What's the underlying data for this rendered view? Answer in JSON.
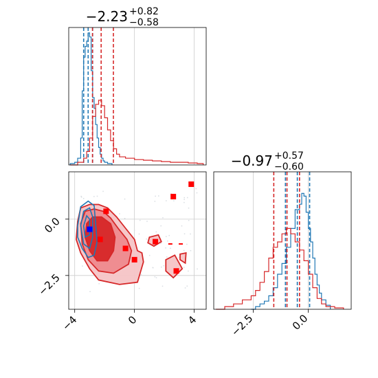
{
  "chart_data": [
    {
      "type": "histogram",
      "panel": "top-left marginal",
      "title": {
        "main": "−2.23",
        "sup": "+0.82",
        "sub": "−0.58"
      },
      "xlim": [
        -4.4,
        4.8
      ],
      "grid": true,
      "x_gridlines": [
        0,
        4
      ],
      "series": [
        {
          "color": "#1f77b4",
          "bins": [
            [
              -4.3,
              0.01
            ],
            [
              -4.0,
              0.02
            ],
            [
              -3.8,
              0.05
            ],
            [
              -3.6,
              0.2
            ],
            [
              -3.5,
              0.55
            ],
            [
              -3.4,
              0.8
            ],
            [
              -3.3,
              0.88
            ],
            [
              -3.2,
              0.92
            ],
            [
              -3.1,
              0.98
            ],
            [
              -3.0,
              0.95
            ],
            [
              -2.9,
              0.7
            ],
            [
              -2.8,
              0.5
            ],
            [
              -2.7,
              0.42
            ],
            [
              -2.6,
              0.3
            ],
            [
              -2.5,
              0.2
            ],
            [
              -2.4,
              0.13
            ],
            [
              -2.3,
              0.08
            ],
            [
              -2.2,
              0.05
            ],
            [
              -2.1,
              0.03
            ],
            [
              -2.0,
              0.02
            ],
            [
              -1.8,
              0.01
            ],
            [
              -1.5,
              0.0
            ]
          ],
          "quantiles": [
            -3.4,
            -3.1,
            -2.8
          ]
        },
        {
          "color": "#d62728",
          "bins": [
            [
              -4.3,
              0.0
            ],
            [
              -3.8,
              0.02
            ],
            [
              -3.4,
              0.05
            ],
            [
              -3.2,
              0.1
            ],
            [
              -3.0,
              0.2
            ],
            [
              -2.8,
              0.36
            ],
            [
              -2.6,
              0.45
            ],
            [
              -2.4,
              0.48
            ],
            [
              -2.2,
              0.44
            ],
            [
              -2.0,
              0.35
            ],
            [
              -1.8,
              0.26
            ],
            [
              -1.6,
              0.18
            ],
            [
              -1.4,
              0.12
            ],
            [
              -1.2,
              0.08
            ],
            [
              -1.0,
              0.06
            ],
            [
              -0.6,
              0.05
            ],
            [
              0.0,
              0.04
            ],
            [
              0.6,
              0.035
            ],
            [
              1.2,
              0.03
            ],
            [
              1.8,
              0.025
            ],
            [
              2.4,
              0.02
            ],
            [
              3.0,
              0.02
            ],
            [
              3.6,
              0.015
            ],
            [
              4.2,
              0.01
            ],
            [
              4.6,
              0.0
            ]
          ],
          "quantiles": [
            -2.81,
            -2.23,
            -1.41
          ]
        }
      ]
    },
    {
      "type": "histogram",
      "panel": "bottom-right marginal",
      "title": {
        "main": "−0.97",
        "sup": "+0.57",
        "sub": "−0.60"
      },
      "xlim": [
        -4.3,
        1.95
      ],
      "x_ticks": [
        {
          "value": -2.5,
          "label": "−2.5"
        },
        {
          "value": 0.0,
          "label": "0.0"
        }
      ],
      "grid": true,
      "series": [
        {
          "color": "#1f77b4",
          "bins": [
            [
              -2.6,
              0.0
            ],
            [
              -2.4,
              0.02
            ],
            [
              -2.2,
              0.04
            ],
            [
              -2.0,
              0.06
            ],
            [
              -1.8,
              0.1
            ],
            [
              -1.6,
              0.16
            ],
            [
              -1.4,
              0.26
            ],
            [
              -1.2,
              0.34
            ],
            [
              -1.0,
              0.46
            ],
            [
              -0.8,
              0.6
            ],
            [
              -0.6,
              0.74
            ],
            [
              -0.4,
              0.78
            ],
            [
              -0.3,
              0.86
            ],
            [
              -0.2,
              0.84
            ],
            [
              -0.1,
              0.72
            ],
            [
              0.0,
              0.6
            ],
            [
              0.1,
              0.5
            ],
            [
              0.2,
              0.38
            ],
            [
              0.3,
              0.26
            ],
            [
              0.4,
              0.18
            ],
            [
              0.5,
              0.12
            ],
            [
              0.6,
              0.07
            ],
            [
              0.8,
              0.03
            ],
            [
              1.0,
              0.0
            ]
          ],
          "quantiles": [
            -1.04,
            -0.5,
            0.06
          ]
        },
        {
          "color": "#d62728",
          "bins": [
            [
              -4.2,
              0.0
            ],
            [
              -3.8,
              0.02
            ],
            [
              -3.4,
              0.04
            ],
            [
              -3.0,
              0.07
            ],
            [
              -2.6,
              0.1
            ],
            [
              -2.4,
              0.14
            ],
            [
              -2.2,
              0.2
            ],
            [
              -2.0,
              0.28
            ],
            [
              -1.8,
              0.38
            ],
            [
              -1.6,
              0.46
            ],
            [
              -1.4,
              0.5
            ],
            [
              -1.2,
              0.56
            ],
            [
              -1.0,
              0.6
            ],
            [
              -0.8,
              0.56
            ],
            [
              -0.6,
              0.5
            ],
            [
              -0.4,
              0.44
            ],
            [
              -0.2,
              0.36
            ],
            [
              0.0,
              0.26
            ],
            [
              0.2,
              0.16
            ],
            [
              0.4,
              0.08
            ],
            [
              0.6,
              0.04
            ],
            [
              0.8,
              0.02
            ],
            [
              1.2,
              0.01
            ],
            [
              1.6,
              0.0
            ]
          ],
          "quantiles": [
            -1.57,
            -0.97,
            -0.4
          ]
        }
      ]
    },
    {
      "type": "contour",
      "panel": "bottom-left joint",
      "xlim": [
        -4.4,
        4.8
      ],
      "ylim": [
        -4.0,
        2.1
      ],
      "x_ticks": [
        {
          "value": -4,
          "label": "−4"
        },
        {
          "value": 0,
          "label": "0"
        },
        {
          "value": 4,
          "label": "4"
        }
      ],
      "y_ticks": [
        {
          "value": 0.0,
          "label": "0.0"
        },
        {
          "value": -2.5,
          "label": "−2.5"
        }
      ],
      "grid": true,
      "red_contours": [
        {
          "level": "outer",
          "fill": "#f6c4c6",
          "points": [
            [
              -3.8,
              -0.1
            ],
            [
              -3.6,
              0.5
            ],
            [
              -3.0,
              0.65
            ],
            [
              -2.4,
              0.65
            ],
            [
              -1.8,
              0.5
            ],
            [
              -1.2,
              0.1
            ],
            [
              -0.6,
              -0.4
            ],
            [
              0.0,
              -0.9
            ],
            [
              0.2,
              -1.4
            ],
            [
              0.5,
              -1.5
            ],
            [
              0.6,
              -1.9
            ],
            [
              0.2,
              -2.8
            ],
            [
              -1.0,
              -2.9
            ],
            [
              -2.4,
              -2.7
            ],
            [
              -3.0,
              -2.2
            ],
            [
              -3.6,
              -1.5
            ],
            [
              -3.9,
              -0.9
            ]
          ]
        },
        {
          "level": "middle",
          "fill": "#ee8a8e",
          "points": [
            [
              -3.6,
              -0.2
            ],
            [
              -3.3,
              0.35
            ],
            [
              -2.7,
              0.45
            ],
            [
              -2.1,
              0.35
            ],
            [
              -1.6,
              0.05
            ],
            [
              -1.1,
              -0.4
            ],
            [
              -0.5,
              -0.9
            ],
            [
              -0.2,
              -1.4
            ],
            [
              -0.4,
              -2.0
            ],
            [
              -1.4,
              -2.4
            ],
            [
              -2.4,
              -2.3
            ],
            [
              -3.1,
              -1.8
            ],
            [
              -3.5,
              -1.1
            ]
          ]
        },
        {
          "level": "inner",
          "fill": "#d62728",
          "points": [
            [
              -3.2,
              -0.2
            ],
            [
              -2.8,
              0.1
            ],
            [
              -2.2,
              0.1
            ],
            [
              -1.6,
              -0.2
            ],
            [
              -1.3,
              -0.8
            ],
            [
              -1.4,
              -1.4
            ],
            [
              -1.8,
              -1.85
            ],
            [
              -2.5,
              -1.85
            ],
            [
              -3.0,
              -1.4
            ],
            [
              -3.3,
              -0.8
            ]
          ]
        },
        {
          "level": "island",
          "fill": "#f6c4c6",
          "points": [
            [
              1.0,
              -0.8
            ],
            [
              1.6,
              -0.7
            ],
            [
              1.8,
              -1.0
            ],
            [
              1.3,
              -1.2
            ],
            [
              0.9,
              -1.05
            ]
          ]
        },
        {
          "level": "island",
          "fill": "#f6c4c6",
          "points": [
            [
              2.1,
              -1.8
            ],
            [
              2.7,
              -1.6
            ],
            [
              3.2,
              -2.2
            ],
            [
              2.6,
              -2.6
            ],
            [
              2.1,
              -2.3
            ]
          ]
        },
        {
          "level": "island",
          "fill": "#f6c4c6",
          "points": [
            [
              3.05,
              -1.55
            ],
            [
              3.45,
              -1.5
            ],
            [
              3.4,
              -1.95
            ],
            [
              3.05,
              -1.8
            ]
          ]
        }
      ],
      "blue_contours": [
        {
          "points": [
            [
              -3.8,
              -0.3
            ],
            [
              -3.6,
              0.55
            ],
            [
              -3.1,
              0.8
            ],
            [
              -2.7,
              0.6
            ],
            [
              -2.6,
              -0.2
            ],
            [
              -2.5,
              -1.0
            ],
            [
              -2.7,
              -1.6
            ],
            [
              -3.1,
              -1.7
            ],
            [
              -3.5,
              -1.3
            ],
            [
              -3.8,
              -0.8
            ]
          ]
        },
        {
          "points": [
            [
              -3.6,
              -0.3
            ],
            [
              -3.4,
              0.35
            ],
            [
              -3.0,
              0.5
            ],
            [
              -2.8,
              0.1
            ],
            [
              -2.8,
              -0.8
            ],
            [
              -3.0,
              -1.3
            ],
            [
              -3.4,
              -1.1
            ]
          ]
        },
        {
          "points": [
            [
              -3.4,
              -0.3
            ],
            [
              -3.2,
              0.15
            ],
            [
              -3.0,
              0.0
            ],
            [
              -3.0,
              -0.7
            ],
            [
              -3.3,
              -0.8
            ]
          ]
        }
      ],
      "red_markers": [
        [
          -1.9,
          0.35
        ],
        [
          -2.3,
          -0.9
        ],
        [
          -0.6,
          -1.3
        ],
        [
          0.0,
          -1.8
        ],
        [
          1.4,
          -1.0
        ],
        [
          2.6,
          1.0
        ],
        [
          3.8,
          1.55
        ],
        [
          2.8,
          -2.3
        ]
      ],
      "blue_markers": [
        [
          -3.0,
          -0.45
        ]
      ],
      "red_dash_markers": [
        [
          2.4,
          -1.1
        ],
        [
          3.1,
          -1.1
        ]
      ]
    }
  ]
}
